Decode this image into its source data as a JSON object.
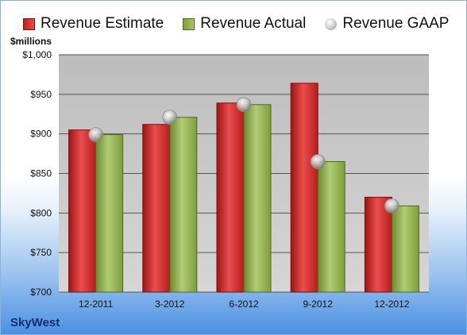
{
  "legend": {
    "estimate_label": "Revenue Estimate",
    "actual_label": "Revenue Actual",
    "gaap_label": "Revenue GAAP"
  },
  "unit_label": "$millions",
  "company": "SkyWest",
  "colors": {
    "estimate": "#d42a2a",
    "actual": "#8fb050",
    "gaap": "#b4b4b4",
    "plot_background": "#c6c6c6",
    "gridline": "#555555"
  },
  "chart_data": {
    "type": "bar",
    "categories": [
      "12-2011",
      "3-2012",
      "6-2012",
      "9-2012",
      "12-2012"
    ],
    "series": [
      {
        "name": "Revenue Estimate",
        "values": [
          905,
          912,
          939,
          964,
          820
        ]
      },
      {
        "name": "Revenue Actual",
        "values": [
          899,
          921,
          937,
          865,
          809
        ]
      },
      {
        "name": "Revenue GAAP",
        "values": [
          899,
          921,
          937,
          865,
          809
        ]
      }
    ],
    "ylabel": "$millions",
    "ylim": [
      700,
      1000
    ],
    "yticks": [
      700,
      750,
      800,
      850,
      900,
      950,
      1000
    ],
    "ytick_labels": [
      "$700",
      "$750",
      "$800",
      "$850",
      "$900",
      "$950",
      "$1,000"
    ],
    "grid": true,
    "legend_position": "top"
  }
}
